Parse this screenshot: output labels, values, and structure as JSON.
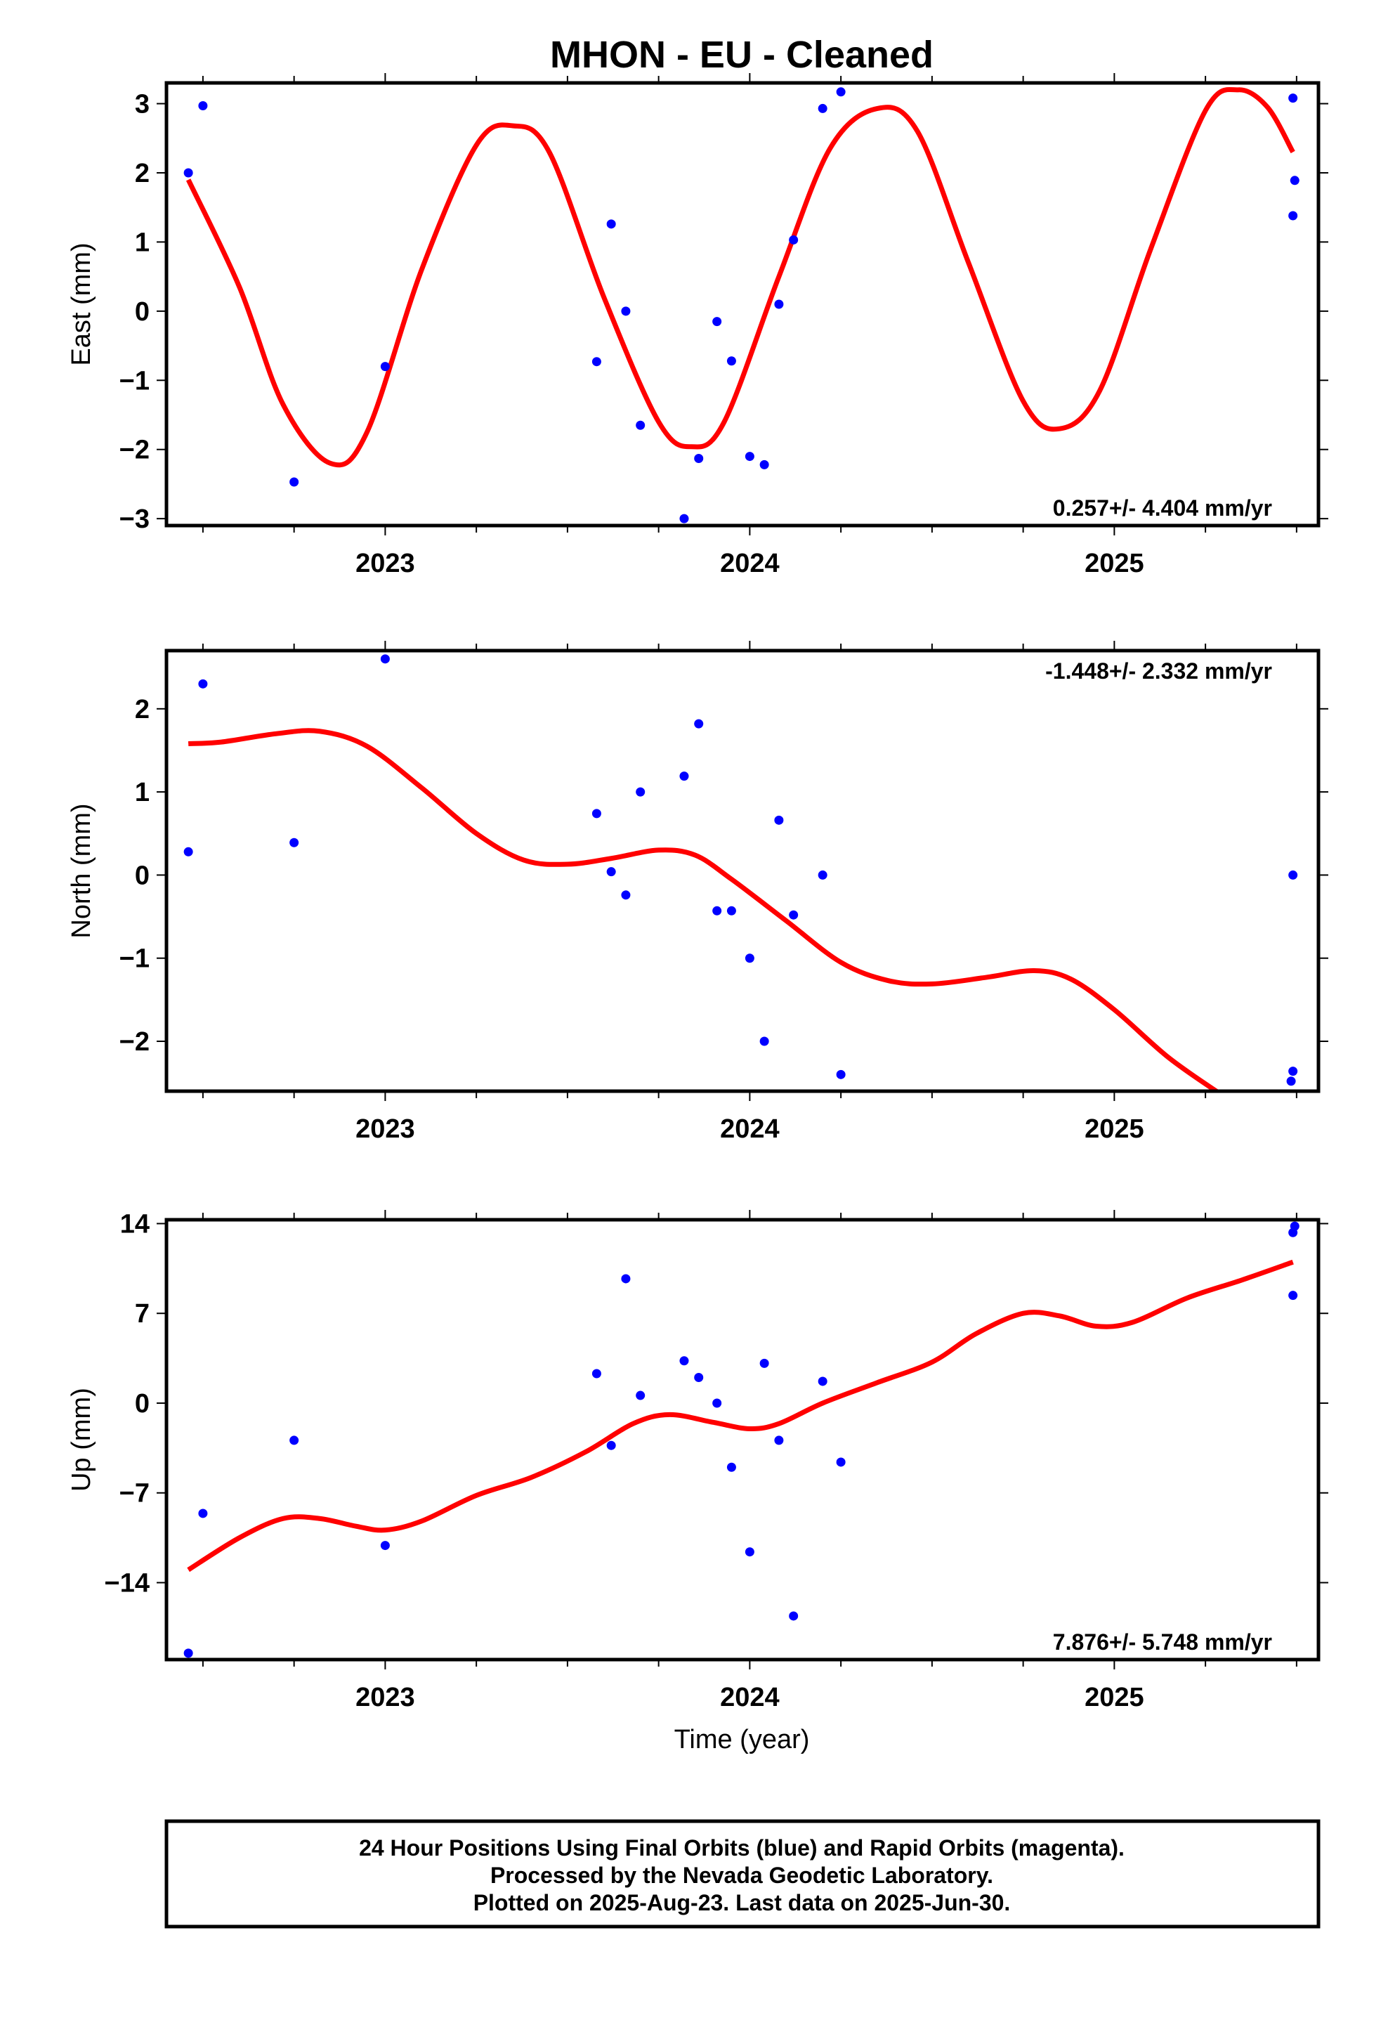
{
  "title": "MHON  - EU - Cleaned",
  "x_axis_label": "Time (year)",
  "footer": {
    "line1": "24 Hour Positions Using Final Orbits (blue) and Rapid Orbits (magenta).",
    "line2": "Processed by the Nevada Geodetic Laboratory.",
    "line3": "Plotted on 2025-Aug-23. Last data on 2025-Jun-30."
  },
  "colors": {
    "points": "#0000ff",
    "model": "#ff0000",
    "frame": "#000000"
  },
  "chart_data": [
    {
      "type": "scatter",
      "ylabel": "East (mm)",
      "rate_label": "0.257+/- 4.404 mm/yr",
      "rate_position": "bottom-right",
      "xlim": [
        2022.4,
        2025.56
      ],
      "ylim": [
        -3.1,
        3.3
      ],
      "x_ticks": [
        2023,
        2024,
        2025
      ],
      "x_tick_labels": [
        "2023",
        "2024",
        "2025"
      ],
      "y_ticks": [
        -3,
        -2,
        -1,
        0,
        1,
        2,
        3
      ],
      "y_tick_labels": [
        "−3",
        "−2",
        "−1",
        "0",
        "1",
        "2",
        "3"
      ],
      "points": [
        {
          "x": 2022.46,
          "y": 2.0
        },
        {
          "x": 2022.5,
          "y": 2.97
        },
        {
          "x": 2022.75,
          "y": -2.47
        },
        {
          "x": 2023.0,
          "y": -0.8
        },
        {
          "x": 2023.58,
          "y": -0.73
        },
        {
          "x": 2023.62,
          "y": 1.26
        },
        {
          "x": 2023.66,
          "y": 0.0
        },
        {
          "x": 2023.7,
          "y": -1.65
        },
        {
          "x": 2023.82,
          "y": -3.0
        },
        {
          "x": 2023.86,
          "y": -2.13
        },
        {
          "x": 2023.91,
          "y": -0.15
        },
        {
          "x": 2023.95,
          "y": -0.72
        },
        {
          "x": 2024.0,
          "y": -2.1
        },
        {
          "x": 2024.04,
          "y": -2.22
        },
        {
          "x": 2024.08,
          "y": 0.1
        },
        {
          "x": 2024.12,
          "y": 1.03
        },
        {
          "x": 2024.2,
          "y": 2.93
        },
        {
          "x": 2024.25,
          "y": 3.17
        },
        {
          "x": 2025.49,
          "y": 3.08
        },
        {
          "x": 2025.495,
          "y": 1.89
        },
        {
          "x": 2025.49,
          "y": 1.38
        }
      ],
      "model": [
        {
          "x": 2022.46,
          "y": 1.9
        },
        {
          "x": 2022.6,
          "y": 0.35
        },
        {
          "x": 2022.72,
          "y": -1.35
        },
        {
          "x": 2022.85,
          "y": -2.2
        },
        {
          "x": 2022.95,
          "y": -1.75
        },
        {
          "x": 2023.1,
          "y": 0.6
        },
        {
          "x": 2023.25,
          "y": 2.4
        },
        {
          "x": 2023.35,
          "y": 2.68
        },
        {
          "x": 2023.45,
          "y": 2.3
        },
        {
          "x": 2023.6,
          "y": 0.2
        },
        {
          "x": 2023.75,
          "y": -1.6
        },
        {
          "x": 2023.84,
          "y": -1.96
        },
        {
          "x": 2023.93,
          "y": -1.6
        },
        {
          "x": 2024.08,
          "y": 0.5
        },
        {
          "x": 2024.22,
          "y": 2.35
        },
        {
          "x": 2024.35,
          "y": 2.93
        },
        {
          "x": 2024.46,
          "y": 2.6
        },
        {
          "x": 2024.6,
          "y": 0.7
        },
        {
          "x": 2024.75,
          "y": -1.3
        },
        {
          "x": 2024.85,
          "y": -1.7
        },
        {
          "x": 2024.96,
          "y": -1.15
        },
        {
          "x": 2025.1,
          "y": 0.9
        },
        {
          "x": 2025.25,
          "y": 2.9
        },
        {
          "x": 2025.34,
          "y": 3.2
        },
        {
          "x": 2025.42,
          "y": 2.95
        },
        {
          "x": 2025.49,
          "y": 2.3
        }
      ]
    },
    {
      "type": "scatter",
      "ylabel": "North (mm)",
      "rate_label": "-1.448+/- 2.332 mm/yr",
      "rate_position": "top-right",
      "xlim": [
        2022.4,
        2025.56
      ],
      "ylim": [
        -2.6,
        2.7
      ],
      "x_ticks": [
        2023,
        2024,
        2025
      ],
      "x_tick_labels": [
        "2023",
        "2024",
        "2025"
      ],
      "y_ticks": [
        -2,
        -1,
        0,
        1,
        2
      ],
      "y_tick_labels": [
        "−2",
        "−1",
        "0",
        "1",
        "2"
      ],
      "points": [
        {
          "x": 2022.46,
          "y": 0.28
        },
        {
          "x": 2022.5,
          "y": 2.3
        },
        {
          "x": 2022.75,
          "y": 0.39
        },
        {
          "x": 2023.0,
          "y": 2.6
        },
        {
          "x": 2023.58,
          "y": 0.74
        },
        {
          "x": 2023.62,
          "y": 0.04
        },
        {
          "x": 2023.66,
          "y": -0.24
        },
        {
          "x": 2023.7,
          "y": 1.0
        },
        {
          "x": 2023.82,
          "y": 1.19
        },
        {
          "x": 2023.86,
          "y": 1.82
        },
        {
          "x": 2023.91,
          "y": -0.43
        },
        {
          "x": 2023.95,
          "y": -0.43
        },
        {
          "x": 2024.0,
          "y": -1.0
        },
        {
          "x": 2024.04,
          "y": -2.0
        },
        {
          "x": 2024.08,
          "y": 0.66
        },
        {
          "x": 2024.12,
          "y": -0.48
        },
        {
          "x": 2024.2,
          "y": 0.0
        },
        {
          "x": 2024.25,
          "y": -2.4
        },
        {
          "x": 2025.49,
          "y": 0.0
        },
        {
          "x": 2025.49,
          "y": -2.36
        },
        {
          "x": 2025.485,
          "y": -2.48
        }
      ],
      "model": [
        {
          "x": 2022.46,
          "y": 1.58
        },
        {
          "x": 2022.55,
          "y": 1.6
        },
        {
          "x": 2022.7,
          "y": 1.7
        },
        {
          "x": 2022.82,
          "y": 1.73
        },
        {
          "x": 2022.95,
          "y": 1.55
        },
        {
          "x": 2023.1,
          "y": 1.05
        },
        {
          "x": 2023.25,
          "y": 0.5
        },
        {
          "x": 2023.38,
          "y": 0.18
        },
        {
          "x": 2023.5,
          "y": 0.13
        },
        {
          "x": 2023.62,
          "y": 0.2
        },
        {
          "x": 2023.75,
          "y": 0.3
        },
        {
          "x": 2023.85,
          "y": 0.24
        },
        {
          "x": 2023.95,
          "y": -0.05
        },
        {
          "x": 2024.1,
          "y": -0.55
        },
        {
          "x": 2024.25,
          "y": -1.05
        },
        {
          "x": 2024.38,
          "y": -1.27
        },
        {
          "x": 2024.5,
          "y": -1.31
        },
        {
          "x": 2024.65,
          "y": -1.23
        },
        {
          "x": 2024.78,
          "y": -1.15
        },
        {
          "x": 2024.88,
          "y": -1.25
        },
        {
          "x": 2025.0,
          "y": -1.62
        },
        {
          "x": 2025.15,
          "y": -2.2
        },
        {
          "x": 2025.3,
          "y": -2.66
        }
      ]
    },
    {
      "type": "scatter",
      "ylabel": "Up (mm)",
      "rate_label": "7.876+/- 5.748 mm/yr",
      "rate_position": "bottom-right",
      "xlim": [
        2022.4,
        2025.56
      ],
      "ylim": [
        -20.0,
        14.3
      ],
      "x_ticks": [
        2023,
        2024,
        2025
      ],
      "x_tick_labels": [
        "2023",
        "2024",
        "2025"
      ],
      "y_ticks": [
        -14,
        -7,
        0,
        7,
        14
      ],
      "y_tick_labels": [
        "−14",
        "−7",
        "0",
        "7",
        "14"
      ],
      "points": [
        {
          "x": 2022.46,
          "y": -19.5
        },
        {
          "x": 2022.5,
          "y": -8.6
        },
        {
          "x": 2022.75,
          "y": -2.9
        },
        {
          "x": 2023.0,
          "y": -11.1
        },
        {
          "x": 2023.58,
          "y": 2.3
        },
        {
          "x": 2023.62,
          "y": -3.3
        },
        {
          "x": 2023.66,
          "y": 9.7
        },
        {
          "x": 2023.7,
          "y": 0.6
        },
        {
          "x": 2023.82,
          "y": 3.3
        },
        {
          "x": 2023.86,
          "y": 2.0
        },
        {
          "x": 2023.91,
          "y": 0.0
        },
        {
          "x": 2023.95,
          "y": -5.0
        },
        {
          "x": 2024.0,
          "y": -11.6
        },
        {
          "x": 2024.04,
          "y": 3.1
        },
        {
          "x": 2024.08,
          "y": -2.9
        },
        {
          "x": 2024.12,
          "y": -16.6
        },
        {
          "x": 2024.2,
          "y": 1.7
        },
        {
          "x": 2024.25,
          "y": -4.6
        },
        {
          "x": 2025.49,
          "y": 13.3
        },
        {
          "x": 2025.495,
          "y": 13.8
        },
        {
          "x": 2025.49,
          "y": 8.4
        }
      ],
      "model": [
        {
          "x": 2022.46,
          "y": -13.0
        },
        {
          "x": 2022.6,
          "y": -10.5
        },
        {
          "x": 2022.72,
          "y": -9.0
        },
        {
          "x": 2022.82,
          "y": -9.0
        },
        {
          "x": 2022.92,
          "y": -9.6
        },
        {
          "x": 2023.0,
          "y": -9.9
        },
        {
          "x": 2023.1,
          "y": -9.2
        },
        {
          "x": 2023.25,
          "y": -7.2
        },
        {
          "x": 2023.4,
          "y": -5.8
        },
        {
          "x": 2023.55,
          "y": -3.8
        },
        {
          "x": 2023.68,
          "y": -1.6
        },
        {
          "x": 2023.78,
          "y": -0.9
        },
        {
          "x": 2023.9,
          "y": -1.5
        },
        {
          "x": 2024.0,
          "y": -2.0
        },
        {
          "x": 2024.08,
          "y": -1.6
        },
        {
          "x": 2024.2,
          "y": 0.0
        },
        {
          "x": 2024.35,
          "y": 1.6
        },
        {
          "x": 2024.5,
          "y": 3.2
        },
        {
          "x": 2024.62,
          "y": 5.4
        },
        {
          "x": 2024.75,
          "y": 7.0
        },
        {
          "x": 2024.85,
          "y": 6.8
        },
        {
          "x": 2024.95,
          "y": 6.0
        },
        {
          "x": 2025.05,
          "y": 6.3
        },
        {
          "x": 2025.2,
          "y": 8.2
        },
        {
          "x": 2025.35,
          "y": 9.6
        },
        {
          "x": 2025.49,
          "y": 11.0
        }
      ]
    }
  ]
}
